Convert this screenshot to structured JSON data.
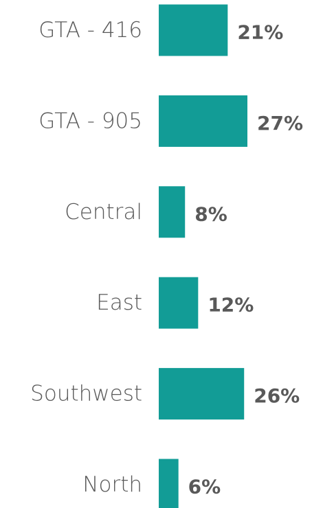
{
  "chart_data": {
    "type": "bar",
    "orientation": "horizontal",
    "categories": [
      "GTA - 416",
      "GTA - 905",
      "Central",
      "East",
      "Southwest",
      "North"
    ],
    "values": [
      21,
      27,
      8,
      12,
      26,
      6
    ],
    "value_labels": [
      "21%",
      "27%",
      "8%",
      "12%",
      "26%",
      "6%"
    ],
    "color": "#129c96"
  }
}
